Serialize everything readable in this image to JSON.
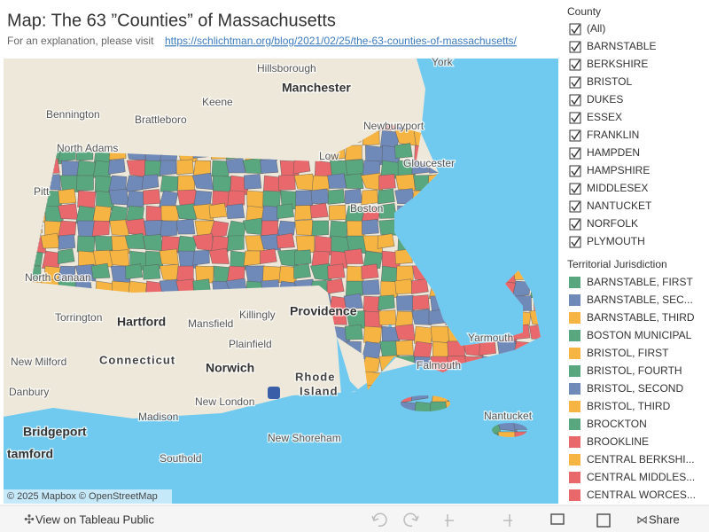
{
  "header": {
    "title": "Map: The 63 ”Counties” of Massachusetts",
    "subtitle": "For an explanation, please visit",
    "link": "https://schlichtman.org/blog/2021/02/25/the-63-counties-of-massachusetts/"
  },
  "map": {
    "labels": [
      "York",
      "Hillsborough",
      "Manchester",
      "Keene",
      "Bennington",
      "Brattleboro",
      "North Adams",
      "Newburyport",
      "Low",
      "Gloucester",
      "Pitt",
      "Boston",
      "North Canaan",
      "Providence",
      "Torrington",
      "Hartford",
      "Killingly",
      "Mansfield",
      "Plainfield",
      "Connecticut",
      "Norwich",
      "Rhode",
      "Island",
      "New Milford",
      "Danbury",
      "New London",
      "Madison",
      "Bridgeport",
      "New Shoreham",
      "Southold",
      "tamford",
      "Yarmouth",
      "Nantucket",
      "Falmouth"
    ],
    "attribution": "© 2025 Mapbox  © OpenStreetMap"
  },
  "county_filter": {
    "title": "County",
    "items": [
      "(All)",
      "BARNSTABLE",
      "BERKSHIRE",
      "BRISTOL",
      "DUKES",
      "ESSEX",
      "FRANKLIN",
      "HAMPDEN",
      "HAMPSHIRE",
      "MIDDLESEX",
      "NANTUCKET",
      "NORFOLK",
      "PLYMOUTH"
    ]
  },
  "legend": {
    "title": "Territorial Jurisdiction",
    "items": [
      {
        "name": "BARNSTABLE, FIRST",
        "color": "#59a77e"
      },
      {
        "name": "BARNSTABLE, SEC...",
        "color": "#6f89b9"
      },
      {
        "name": "BARNSTABLE, THIRD",
        "color": "#f6b443"
      },
      {
        "name": "BOSTON MUNICIPAL",
        "color": "#59a77e"
      },
      {
        "name": "BRISTOL, FIRST",
        "color": "#f6b443"
      },
      {
        "name": "BRISTOL, FOURTH",
        "color": "#59a77e"
      },
      {
        "name": "BRISTOL, SECOND",
        "color": "#6f89b9"
      },
      {
        "name": "BRISTOL, THIRD",
        "color": "#f6b443"
      },
      {
        "name": "BROCKTON",
        "color": "#59a77e"
      },
      {
        "name": "BROOKLINE",
        "color": "#e8686b"
      },
      {
        "name": "CENTRAL BERKSHI...",
        "color": "#f6b443"
      },
      {
        "name": "CENTRAL MIDDLES...",
        "color": "#e8686b"
      },
      {
        "name": "CENTRAL WORCES...",
        "color": "#e8686b"
      }
    ]
  },
  "toolbar": {
    "view": "View on Tableau Public",
    "share": "Share"
  }
}
